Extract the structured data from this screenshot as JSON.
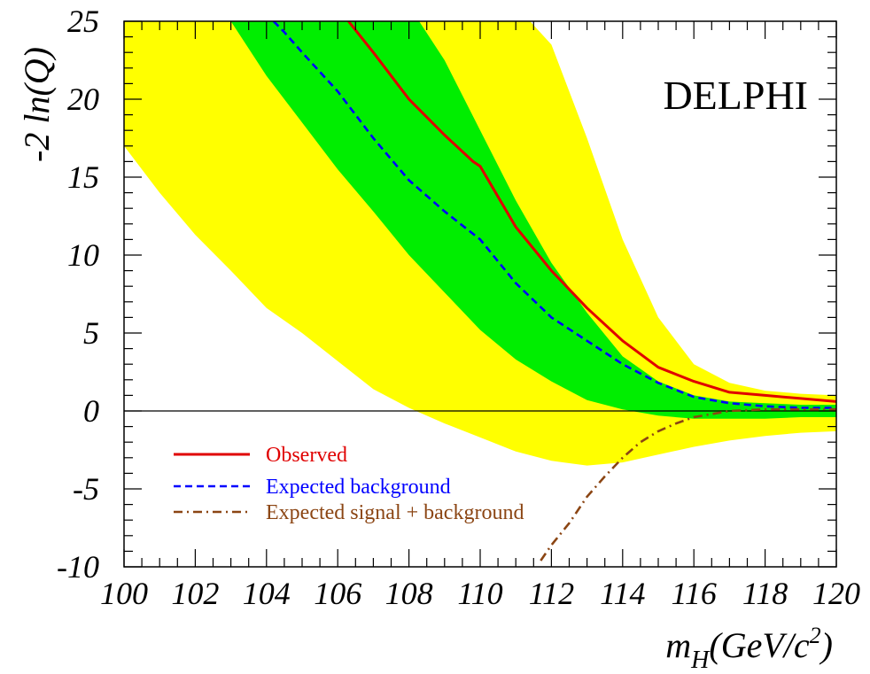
{
  "chart_data": {
    "type": "line",
    "experiment_label": "DELPHI",
    "xlabel": {
      "main": "m",
      "sub": "H",
      "unit_prefix": "(GeV/c",
      "sup": "2",
      "unit_suffix": ")"
    },
    "ylabel": "-2 ln(Q)",
    "xlim": [
      100,
      120
    ],
    "ylim": [
      -10,
      25
    ],
    "x_ticks": [
      "100",
      "102",
      "104",
      "106",
      "108",
      "110",
      "112",
      "114",
      "116",
      "118",
      "120"
    ],
    "y_ticks": [
      "-10",
      "-5",
      "0",
      "5",
      "10",
      "15",
      "20",
      "25"
    ],
    "grid": false,
    "legend_position": "bottom-left",
    "colors": {
      "band_2sigma": "#ffff00",
      "band_1sigma": "#00ee00",
      "observed": "#e00000",
      "expected_background": "#0000ff",
      "expected_signal_background": "#8b4513",
      "zero_line": "#000000"
    },
    "bands": [
      {
        "name": "2sigma",
        "x": [
          100,
          101,
          102,
          103,
          104,
          105,
          106,
          107,
          108,
          109,
          110,
          111,
          112,
          113,
          114,
          115,
          116,
          117,
          118,
          119,
          120
        ],
        "upper": [
          26,
          26,
          26,
          26,
          26,
          26,
          26,
          26,
          26,
          26,
          26,
          26,
          23.5,
          17.5,
          11,
          6,
          3,
          1.8,
          1.3,
          1.1,
          1.0
        ],
        "lower": [
          17,
          14,
          11.3,
          9,
          6.6,
          5,
          3.2,
          1.4,
          0.2,
          -0.8,
          -1.7,
          -2.6,
          -3.2,
          -3.5,
          -3.3,
          -2.8,
          -2.3,
          -1.9,
          -1.6,
          -1.4,
          -1.3
        ]
      },
      {
        "name": "1sigma",
        "x": [
          100,
          101,
          102,
          103,
          104,
          105,
          106,
          107,
          108,
          109,
          110,
          111,
          112,
          113,
          114,
          115,
          116,
          117,
          118,
          119,
          120
        ],
        "upper": [
          26,
          26,
          26,
          26,
          26,
          26,
          26,
          26,
          26,
          22.5,
          18,
          13.5,
          9.5,
          6.3,
          3.5,
          1.9,
          1.0,
          0.6,
          0.5,
          0.4,
          0.4
        ],
        "lower": [
          26,
          26,
          26,
          25,
          21.5,
          18.5,
          15.5,
          12.8,
          10,
          7.6,
          5.2,
          3.3,
          1.9,
          0.7,
          0.1,
          -0.3,
          -0.5,
          -0.5,
          -0.5,
          -0.4,
          -0.4
        ]
      }
    ],
    "series": [
      {
        "name": "Observed",
        "style": "solid",
        "x": [
          106.3,
          107,
          108,
          109,
          109.8,
          110,
          111,
          112,
          113,
          114,
          115,
          116,
          117,
          118,
          119,
          120
        ],
        "y": [
          25,
          23,
          20,
          17.7,
          16,
          15.7,
          11.8,
          9,
          6.6,
          4.5,
          2.8,
          1.9,
          1.2,
          1.0,
          0.8,
          0.6
        ]
      },
      {
        "name": "Expected background",
        "style": "dashed",
        "x": [
          104.2,
          104.5,
          105,
          106,
          107,
          108,
          109,
          110,
          111,
          112,
          113,
          114,
          115,
          116,
          117,
          118,
          119,
          120
        ],
        "y": [
          25,
          24.3,
          23,
          20.5,
          17.5,
          14.8,
          12.8,
          11,
          8.2,
          6,
          4.5,
          3,
          1.8,
          0.9,
          0.5,
          0.3,
          0.2,
          0.2
        ]
      },
      {
        "name": "Expected signal + background",
        "style": "dash-dot",
        "x": [
          111.7,
          112,
          112.5,
          113,
          113.5,
          114,
          114.5,
          115,
          115.5,
          116,
          117,
          118,
          119,
          120
        ],
        "y": [
          -9.6,
          -8.6,
          -7.2,
          -5.5,
          -4.2,
          -3.0,
          -2.0,
          -1.3,
          -0.8,
          -0.4,
          0.0,
          0.1,
          0.1,
          0.1
        ]
      }
    ]
  }
}
